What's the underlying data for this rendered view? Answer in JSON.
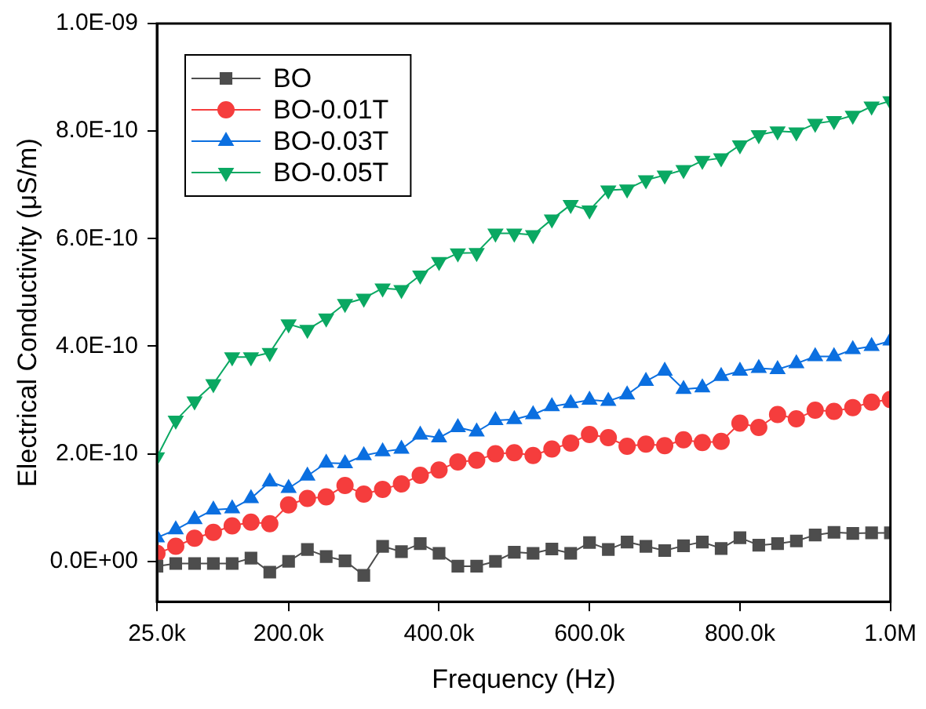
{
  "chart_data": {
    "type": "line",
    "xlabel": "Frequency (Hz)",
    "ylabel": "Electrical Conductivity (μS/m)",
    "x": [
      25000,
      50000,
      75000,
      100000,
      125000,
      150000,
      175000,
      200000,
      225000,
      250000,
      275000,
      300000,
      325000,
      350000,
      375000,
      400000,
      425000,
      450000,
      475000,
      500000,
      525000,
      550000,
      575000,
      600000,
      625000,
      650000,
      675000,
      700000,
      725000,
      750000,
      775000,
      800000,
      825000,
      850000,
      875000,
      900000,
      925000,
      950000,
      975000,
      1000000
    ],
    "series": [
      {
        "name": "BO",
        "color": "#4d4d4d",
        "marker": "square",
        "values": [
          -9e-12,
          -4e-12,
          -4e-12,
          -4e-12,
          -4e-12,
          6e-12,
          -2e-11,
          0,
          2.2e-11,
          9e-12,
          1e-12,
          -2.6e-11,
          2.8e-11,
          1.8e-11,
          3.3e-11,
          1.5e-11,
          -9e-12,
          -9e-12,
          0,
          1.7e-11,
          1.5e-11,
          2.3e-11,
          1.5e-11,
          3.5e-11,
          2.2e-11,
          3.6e-11,
          2.8e-11,
          2e-11,
          2.9e-11,
          3.6e-11,
          2.4e-11,
          4.4e-11,
          3e-11,
          3.3e-11,
          3.8e-11,
          4.9e-11,
          5.4e-11,
          5.2e-11,
          5.3e-11,
          5.3e-11
        ]
      },
      {
        "name": "BO-0.01T",
        "color": "#f53d3d",
        "marker": "circle",
        "values": [
          1.5e-11,
          2.8e-11,
          4.3e-11,
          5.4e-11,
          6.6e-11,
          7.3e-11,
          7e-11,
          1.05e-10,
          1.17e-10,
          1.2e-10,
          1.41e-10,
          1.25e-10,
          1.34e-10,
          1.44e-10,
          1.6e-10,
          1.7e-10,
          1.85e-10,
          1.88e-10,
          2e-10,
          2.02e-10,
          1.97e-10,
          2.09e-10,
          2.2e-10,
          2.36e-10,
          2.3e-10,
          2.14e-10,
          2.18e-10,
          2.15e-10,
          2.26e-10,
          2.21e-10,
          2.23e-10,
          2.57e-10,
          2.49e-10,
          2.73e-10,
          2.65e-10,
          2.81e-10,
          2.79e-10,
          2.86e-10,
          2.96e-10,
          3.01e-10
        ]
      },
      {
        "name": "BO-0.03T",
        "color": "#0b6fe0",
        "marker": "triangle",
        "values": [
          4.4e-11,
          5.9e-11,
          7.8e-11,
          9.6e-11,
          9.8e-11,
          1.17e-10,
          1.48e-10,
          1.36e-10,
          1.59e-10,
          1.83e-10,
          1.82e-10,
          1.97e-10,
          2.04e-10,
          2.09e-10,
          2.35e-10,
          2.3e-10,
          2.49e-10,
          2.41e-10,
          2.62e-10,
          2.64e-10,
          2.73e-10,
          2.88e-10,
          2.94e-10,
          3e-10,
          2.98e-10,
          3.1e-10,
          3.35e-10,
          3.54e-10,
          3.2e-10,
          3.23e-10,
          3.44e-10,
          3.54e-10,
          3.59e-10,
          3.57e-10,
          3.68e-10,
          3.81e-10,
          3.81e-10,
          3.94e-10,
          4e-10,
          4.1e-10
        ]
      },
      {
        "name": "BO-0.05T",
        "color": "#0aa862",
        "marker": "triangle_down",
        "values": [
          1.94e-10,
          2.62e-10,
          2.98e-10,
          3.3e-10,
          3.8e-10,
          3.8e-10,
          3.88e-10,
          4.41e-10,
          4.31e-10,
          4.52e-10,
          4.79e-10,
          4.89e-10,
          5.08e-10,
          5.05e-10,
          5.32e-10,
          5.57e-10,
          5.73e-10,
          5.74e-10,
          6.1e-10,
          6.1e-10,
          6.07e-10,
          6.36e-10,
          6.63e-10,
          6.53e-10,
          6.9e-10,
          6.92e-10,
          7.09e-10,
          7.18e-10,
          7.28e-10,
          7.45e-10,
          7.5e-10,
          7.74e-10,
          7.93e-10,
          8e-10,
          7.98e-10,
          8.14e-10,
          8.19e-10,
          8.29e-10,
          8.46e-10,
          8.56e-10
        ]
      }
    ],
    "xlim": [
      25000,
      1000000
    ],
    "xticks": [
      {
        "value": 25000,
        "label": "25.0k"
      },
      {
        "value": 200000,
        "label": "200.0k"
      },
      {
        "value": 400000,
        "label": "400.0k"
      },
      {
        "value": 600000,
        "label": "600.0k"
      },
      {
        "value": 800000,
        "label": "800.0k"
      },
      {
        "value": 1000000,
        "label": "1.0M"
      }
    ],
    "ylim": [
      -7.5e-11,
      1e-09
    ],
    "yticks": [
      {
        "value": 0,
        "label": "0.0E+00"
      },
      {
        "value": 2e-10,
        "label": "2.0E-10"
      },
      {
        "value": 4e-10,
        "label": "4.0E-10"
      },
      {
        "value": 6e-10,
        "label": "6.0E-10"
      },
      {
        "value": 8e-10,
        "label": "8.0E-10"
      },
      {
        "value": 1e-09,
        "label": "1.0E-09"
      }
    ],
    "grid": false,
    "legend": "top left",
    "line_style": "solid"
  }
}
